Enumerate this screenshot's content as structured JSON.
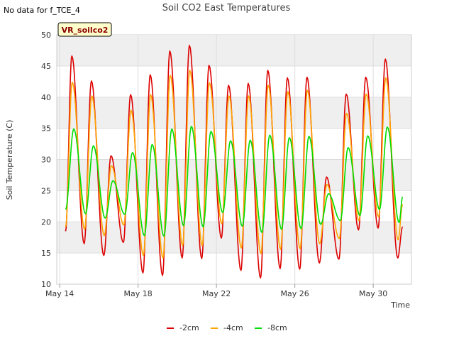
{
  "no_data_note": "No data for f_TCE_4",
  "site_tag": "VR_soilco2",
  "colors": {
    "band": "#efefef",
    "grid": "#dddddd",
    "tag_fill": "#ffffcc",
    "tag_text": "#8b0000"
  },
  "chart_data": {
    "type": "line",
    "title": "Soil CO2 East Temperatures",
    "xlabel": "Time",
    "ylabel": "Soil Temperature (C)",
    "xlim": [
      13.85,
      31.95
    ],
    "ylim": [
      10,
      50
    ],
    "yticks": [
      10,
      15,
      20,
      25,
      30,
      35,
      40,
      45,
      50
    ],
    "xticks": [
      {
        "value": 14,
        "label": "May 14"
      },
      {
        "value": 18,
        "label": "May 18"
      },
      {
        "value": 22,
        "label": "May 22"
      },
      {
        "value": 26,
        "label": "May 26"
      },
      {
        "value": 30,
        "label": "May 30"
      }
    ],
    "grid": true,
    "legend_position": "bottom-center",
    "x_unit": "day of May",
    "series": [
      {
        "name": "-2cm",
        "color": "#dd0000",
        "start": 14.3,
        "end": 31.5,
        "min_time": 0.25,
        "max_time": 0.62,
        "lows": [
          18.5,
          16.5,
          14.6,
          16.7,
          11.8,
          11.4,
          14.2,
          14.1,
          17.4,
          12.2,
          11.0,
          12.5,
          12.4,
          13.4,
          14.0,
          18.7,
          19.0,
          14.2
        ],
        "highs": [
          46.6,
          42.6,
          30.6,
          40.4,
          43.6,
          47.4,
          48.3,
          45.1,
          41.9,
          42.2,
          44.3,
          43.1,
          43.2,
          27.2,
          40.5,
          43.2,
          46.1
        ],
        "final": 19.2
      },
      {
        "name": "-4cm",
        "color": "#ffa500",
        "start": 14.3,
        "end": 31.5,
        "min_time": 0.27,
        "max_time": 0.64,
        "lows": [
          19.2,
          18.8,
          17.8,
          19.5,
          14.6,
          14.2,
          16.2,
          16.2,
          19.7,
          15.8,
          14.9,
          15.6,
          15.7,
          16.5,
          17.3,
          20.2,
          20.8,
          17.1
        ],
        "highs": [
          42.4,
          40.2,
          29.0,
          37.9,
          40.4,
          43.5,
          44.3,
          42.3,
          40.2,
          40.2,
          41.9,
          40.9,
          41.1,
          26.0,
          37.4,
          40.5,
          43.1
        ],
        "final": 22.8
      },
      {
        "name": "-8cm",
        "color": "#00dd00",
        "start": 14.3,
        "end": 31.5,
        "min_time": 0.32,
        "max_time": 0.72,
        "lows": [
          22.0,
          21.3,
          20.6,
          21.2,
          17.8,
          17.7,
          19.4,
          19.2,
          21.5,
          19.3,
          18.3,
          18.8,
          18.9,
          19.6,
          20.2,
          21.0,
          22.0,
          19.9
        ],
        "highs": [
          34.9,
          32.2,
          26.6,
          31.1,
          32.4,
          34.9,
          35.3,
          34.5,
          33.0,
          33.1,
          33.9,
          33.5,
          33.7,
          24.5,
          31.9,
          33.8,
          35.2
        ],
        "final": 24.0
      }
    ]
  }
}
